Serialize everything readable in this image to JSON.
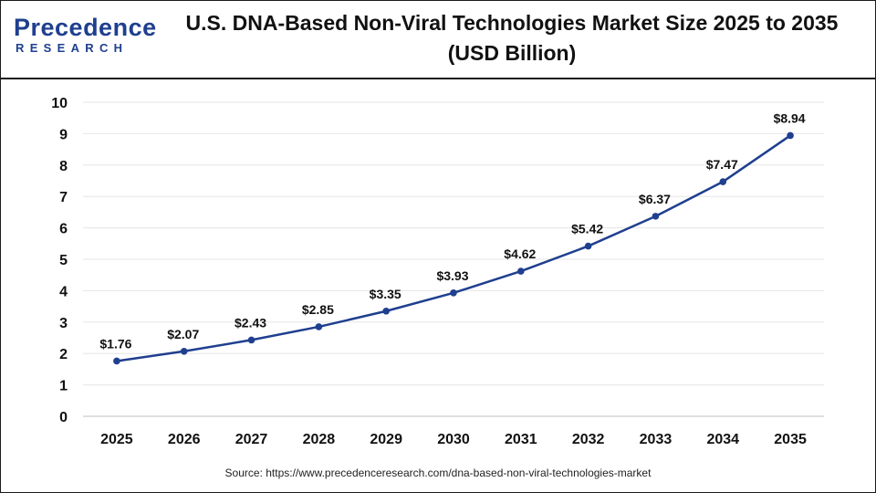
{
  "header": {
    "logo_top": "Precedence",
    "logo_bottom": "RESEARCH",
    "title": "U.S. DNA-Based Non-Viral Technologies Market Size 2025 to 2035 (USD Billion)"
  },
  "footer": {
    "source": "Source: https://www.precedenceresearch.com/dna-based-non-viral-technologies-market"
  },
  "colors": {
    "line": "#1f3f8f",
    "brand": "#1f3f8f",
    "grid": "#e6e6e6",
    "text": "#111111"
  },
  "chart_data": {
    "type": "line",
    "title": "U.S. DNA-Based Non-Viral Technologies Market Size 2025 to 2035 (USD Billion)",
    "xlabel": "",
    "ylabel": "",
    "categories": [
      "2025",
      "2026",
      "2027",
      "2028",
      "2029",
      "2030",
      "2031",
      "2032",
      "2033",
      "2034",
      "2035"
    ],
    "series": [
      {
        "values": [
          1.76,
          2.07,
          2.43,
          2.85,
          3.35,
          3.93,
          4.62,
          5.42,
          6.37,
          7.47,
          8.94
        ],
        "labels": [
          "$1.76",
          "$2.07",
          "$2.43",
          "$2.85",
          "$3.35",
          "$3.93",
          "$4.62",
          "$5.42",
          "$6.37",
          "$7.47",
          "$8.94"
        ]
      }
    ],
    "ylim": [
      0,
      10
    ],
    "yticks": [
      "0",
      "1",
      "2",
      "3",
      "4",
      "5",
      "6",
      "7",
      "8",
      "9",
      "10"
    ],
    "grid": true,
    "legend": "none"
  }
}
